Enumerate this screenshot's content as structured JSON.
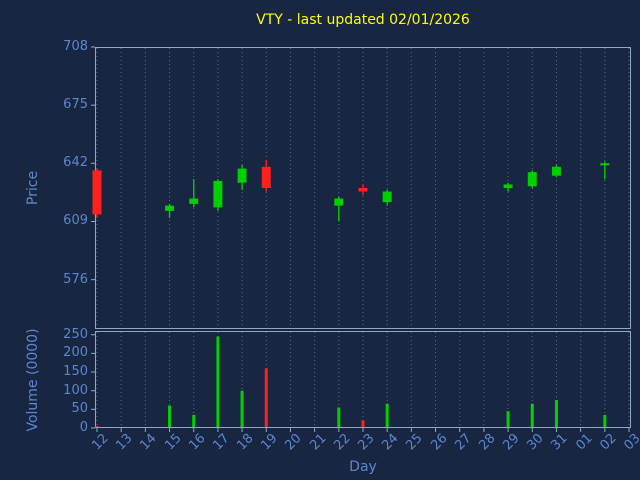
{
  "title": "VTY - last updated 02/01/2026",
  "colors": {
    "background": "#182642",
    "title_text": "#ffff00",
    "axis_text": "#5b87d0",
    "spine": "#8fa8c4",
    "grid": "#cdd7e8",
    "up": "#00cf00",
    "down": "#ff2020"
  },
  "axes": {
    "price": {
      "label": "Price"
    },
    "volume": {
      "label": "Volume (0000)"
    },
    "x": {
      "label": "Day"
    }
  },
  "chart_data": {
    "type": "candlestick",
    "title": "VTY - last updated 02/01/2026",
    "xlabel": "Day",
    "ylabel_price": "Price",
    "ylabel_volume": "Volume (0000)",
    "grid": "vertical-dotted",
    "legend": "none",
    "categories": [
      "12",
      "13",
      "14",
      "15",
      "16",
      "17",
      "18",
      "19",
      "20",
      "21",
      "22",
      "23",
      "24",
      "25",
      "26",
      "27",
      "28",
      "29",
      "30",
      "31",
      "01",
      "02",
      "03"
    ],
    "price_ylim": [
      548,
      708
    ],
    "price_ticks": [
      576,
      609,
      642,
      675,
      708
    ],
    "volume_ylim": [
      0,
      260
    ],
    "volume_ticks": [
      0,
      50,
      100,
      150,
      200,
      250
    ],
    "ohlc": [
      {
        "day": "12",
        "open": 638,
        "high": 639,
        "low": 611,
        "close": 613,
        "volume": 5
      },
      {
        "day": "15",
        "open": 615,
        "high": 619,
        "low": 611,
        "close": 618,
        "volume": 60
      },
      {
        "day": "16",
        "open": 619,
        "high": 633,
        "low": 617,
        "close": 622,
        "volume": 35
      },
      {
        "day": "17",
        "open": 617,
        "high": 633,
        "low": 615,
        "close": 632,
        "volume": 245
      },
      {
        "day": "18",
        "open": 631,
        "high": 641,
        "low": 627,
        "close": 639,
        "volume": 100
      },
      {
        "day": "19",
        "open": 640,
        "high": 644,
        "low": 626,
        "close": 628,
        "volume": 160
      },
      {
        "day": "22",
        "open": 618,
        "high": 623,
        "low": 609,
        "close": 622,
        "volume": 55
      },
      {
        "day": "23",
        "open": 628,
        "high": 630,
        "low": 624,
        "close": 626,
        "volume": 20
      },
      {
        "day": "24",
        "open": 620,
        "high": 627,
        "low": 618,
        "close": 626,
        "volume": 65
      },
      {
        "day": "29",
        "open": 628,
        "high": 631,
        "low": 626,
        "close": 630,
        "volume": 45
      },
      {
        "day": "30",
        "open": 629,
        "high": 638,
        "low": 628,
        "close": 637,
        "volume": 65
      },
      {
        "day": "31",
        "open": 635,
        "high": 641,
        "low": 634,
        "close": 640,
        "volume": 75
      },
      {
        "day": "02",
        "open": 641,
        "high": 643,
        "low": 633,
        "close": 642,
        "volume": 35
      }
    ]
  }
}
